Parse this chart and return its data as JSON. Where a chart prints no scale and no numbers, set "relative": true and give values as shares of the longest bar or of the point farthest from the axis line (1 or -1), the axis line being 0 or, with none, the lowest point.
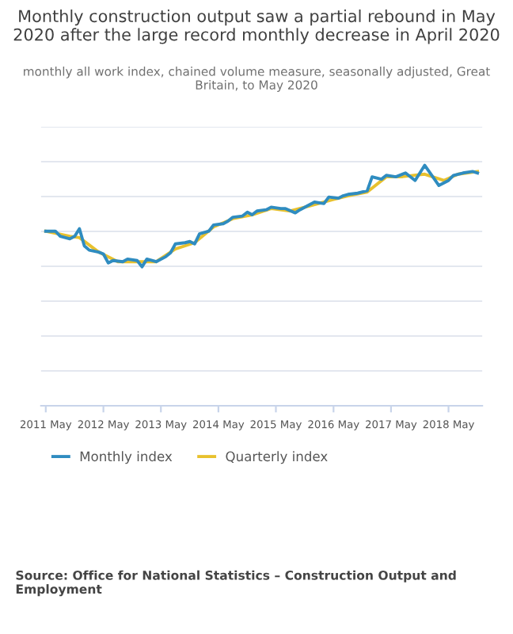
{
  "chart_data": {
    "type": "line",
    "title": "Monthly construction output saw a partial rebound in May 2020 after the large record monthly decrease in April 2020",
    "subtitle": "monthly all work index, chained volume measure, seasonally adjusted, Great Britain, to May 2020",
    "relative": true,
    "grid": "y",
    "legend": "bottom left",
    "marker": "none",
    "line_style": "solid",
    "xlim": [
      "2011-04",
      "2018-12"
    ],
    "xticks": [
      {
        "value": "2011-05",
        "label": "2011 May"
      },
      {
        "value": "2012-05",
        "label": "2012 May"
      },
      {
        "value": "2013-05",
        "label": "2013 May"
      },
      {
        "value": "2014-05",
        "label": "2014 May"
      },
      {
        "value": "2015-05",
        "label": "2015 May"
      },
      {
        "value": "2016-05",
        "label": "2016 May"
      },
      {
        "value": "2017-05",
        "label": "2017 May"
      },
      {
        "value": "2018-05",
        "label": "2018 May"
      }
    ],
    "series": [
      {
        "name": "Monthly index",
        "color": "#2f8cc0",
        "x": [
          "2011-05",
          "2011-07",
          "2011-08",
          "2011-10",
          "2011-11",
          "2011-12",
          "2012-01",
          "2012-02",
          "2012-04",
          "2012-05",
          "2012-06",
          "2012-07",
          "2012-09",
          "2012-10",
          "2012-12",
          "2013-01",
          "2013-02",
          "2013-04",
          "2013-06",
          "2013-07",
          "2013-08",
          "2013-10",
          "2013-11",
          "2013-12",
          "2014-01",
          "2014-03",
          "2014-04",
          "2014-06",
          "2014-07",
          "2014-08",
          "2014-10",
          "2014-11",
          "2014-12",
          "2015-01",
          "2015-03",
          "2015-04",
          "2015-06",
          "2015-07",
          "2015-09",
          "2015-10",
          "2015-12",
          "2016-01",
          "2016-03",
          "2016-04",
          "2016-06",
          "2016-07",
          "2016-08",
          "2016-10",
          "2016-12",
          "2017-01",
          "2017-03",
          "2017-04",
          "2017-06",
          "2017-08",
          "2017-10",
          "2017-12",
          "2018-02",
          "2018-03",
          "2018-05",
          "2018-06",
          "2018-08",
          "2018-10",
          "2018-11"
        ],
        "values": [
          0.726,
          0.726,
          0.705,
          0.694,
          0.705,
          0.736,
          0.665,
          0.647,
          0.639,
          0.631,
          0.594,
          0.604,
          0.599,
          0.61,
          0.604,
          0.578,
          0.61,
          0.599,
          0.62,
          0.636,
          0.673,
          0.678,
          0.683,
          0.673,
          0.715,
          0.726,
          0.752,
          0.757,
          0.768,
          0.784,
          0.789,
          0.805,
          0.794,
          0.81,
          0.815,
          0.826,
          0.82,
          0.82,
          0.802,
          0.815,
          0.836,
          0.847,
          0.841,
          0.868,
          0.863,
          0.873,
          0.879,
          0.884,
          0.894,
          0.952,
          0.942,
          0.958,
          0.952,
          0.968,
          0.937,
          1,
          0.942,
          0.916,
          0.937,
          0.958,
          0.968,
          0.974,
          0.968
        ]
      },
      {
        "name": "Quarterly index",
        "color": "#e8c12e",
        "x": [
          "2011-05",
          "2011-10",
          "2011-12",
          "2012-04",
          "2012-08",
          "2012-12",
          "2013-04",
          "2013-08",
          "2013-12",
          "2014-04",
          "2014-08",
          "2014-12",
          "2015-04",
          "2015-08",
          "2015-12",
          "2016-05",
          "2016-08",
          "2016-12",
          "2017-04",
          "2017-07",
          "2017-12",
          "2018-04",
          "2018-07",
          "2018-11"
        ],
        "values": [
          0.726,
          0.705,
          0.699,
          0.639,
          0.599,
          0.599,
          0.599,
          0.652,
          0.678,
          0.744,
          0.778,
          0.794,
          0.82,
          0.81,
          0.831,
          0.858,
          0.873,
          0.889,
          0.952,
          0.952,
          0.963,
          0.937,
          0.963,
          0.974
        ]
      }
    ],
    "annotations": [
      "Source: Office for National Statistics – Construction Output and Employment"
    ]
  }
}
